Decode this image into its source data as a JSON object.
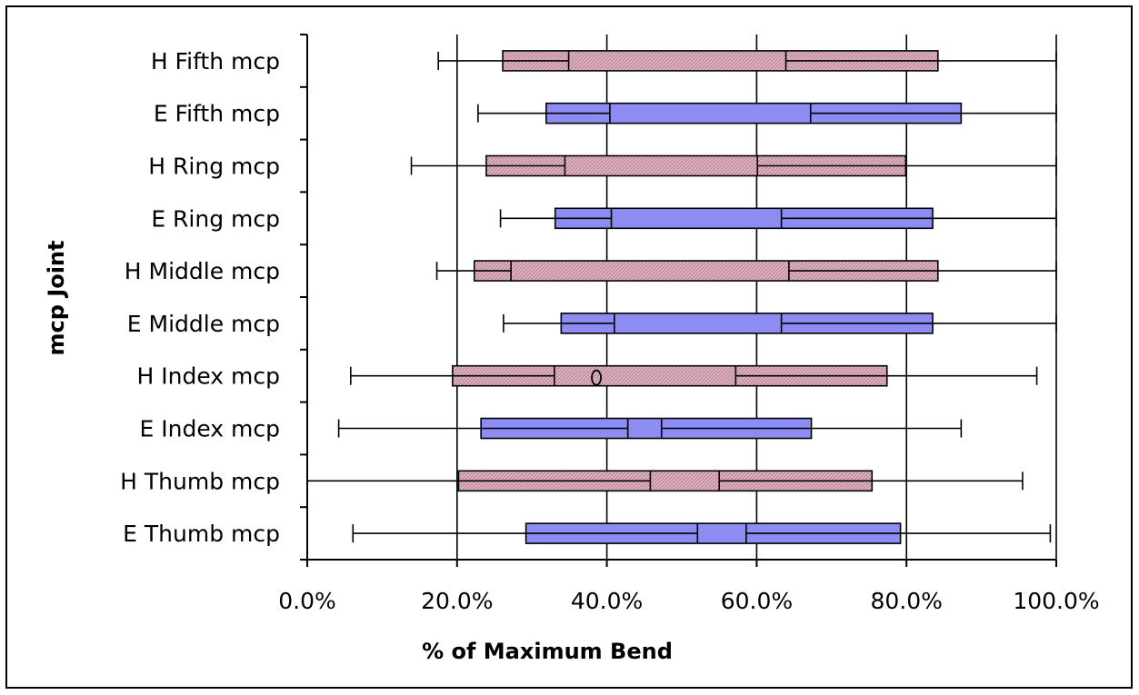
{
  "chart_data": {
    "type": "box",
    "orientation": "horizontal",
    "xlabel": "% of Maximum Bend",
    "ylabel": "mcp Joint",
    "xlim": [
      0,
      100
    ],
    "x_ticks": [
      0,
      20,
      40,
      60,
      80,
      100
    ],
    "x_tick_labels": [
      "0.0%",
      "20.0%",
      "40.0%",
      "60.0%",
      "80.0%",
      "100.0%"
    ],
    "grid": "vertical",
    "colors": {
      "H": "#dbb0c0",
      "E": "#8c8cf2"
    },
    "categories": [
      "H Fifth mcp",
      "E Fifth mcp",
      "H Ring mcp",
      "E Ring mcp",
      "H Middle mcp",
      "E Middle mcp",
      "H Index mcp",
      "E Index mcp",
      "H Thumb mcp",
      "E Thumb mcp"
    ],
    "boxes": [
      {
        "label": "H Fifth mcp",
        "group": "H",
        "whisker_low": 17.5,
        "box_low": 26.1,
        "q1": 34.9,
        "q3": 63.9,
        "box_high": 84.2,
        "whisker_high": 100
      },
      {
        "label": "E Fifth mcp",
        "group": "E",
        "whisker_low": 22.8,
        "box_low": 31.9,
        "q1": 40.4,
        "q3": 67.2,
        "box_high": 87.3,
        "whisker_high": 100
      },
      {
        "label": "H Ring mcp",
        "group": "H",
        "whisker_low": 13.9,
        "box_low": 23.9,
        "q1": 34.4,
        "q3": 60.1,
        "box_high": 79.9,
        "whisker_high": 100
      },
      {
        "label": "E Ring mcp",
        "group": "E",
        "whisker_low": 25.8,
        "box_low": 33.1,
        "q1": 40.6,
        "q3": 63.3,
        "box_high": 83.5,
        "whisker_high": 100
      },
      {
        "label": "H Middle mcp",
        "group": "H",
        "whisker_low": 17.3,
        "box_low": 22.3,
        "q1": 27.2,
        "q3": 64.3,
        "box_high": 84.2,
        "whisker_high": 100
      },
      {
        "label": "E Middle mcp",
        "group": "E",
        "whisker_low": 26.2,
        "box_low": 33.9,
        "q1": 41.0,
        "q3": 63.3,
        "box_high": 83.5,
        "whisker_high": 100
      },
      {
        "label": "H Index mcp",
        "group": "H",
        "whisker_low": 5.8,
        "box_low": 19.4,
        "q1": 33.0,
        "q3": 57.2,
        "box_high": 77.4,
        "whisker_high": 97.4,
        "annotation": "o",
        "annotation_x": 38.6
      },
      {
        "label": "E Index mcp",
        "group": "E",
        "whisker_low": 4.2,
        "box_low": 23.2,
        "q1": 42.8,
        "q3": 47.3,
        "box_high": 67.3,
        "whisker_high": 87.3
      },
      {
        "label": "H Thumb mcp",
        "group": "H",
        "whisker_low": 0,
        "box_low": 20.2,
        "q1": 45.8,
        "q3": 55.0,
        "box_high": 75.4,
        "whisker_high": 95.5
      },
      {
        "label": "E Thumb mcp",
        "group": "E",
        "whisker_low": 6.1,
        "box_low": 29.2,
        "q1": 52.1,
        "q3": 58.6,
        "box_high": 79.2,
        "whisker_high": 99.2
      }
    ]
  }
}
